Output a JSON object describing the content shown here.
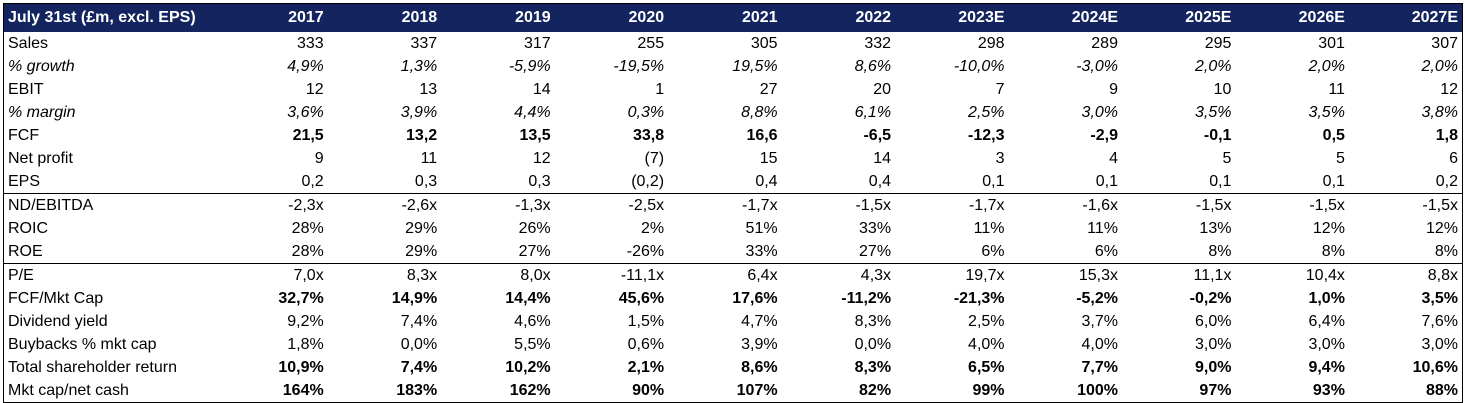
{
  "header": {
    "label": "July 31st (£m, excl. EPS)",
    "years": [
      "2017",
      "2018",
      "2019",
      "2020",
      "2021",
      "2022",
      "2023E",
      "2024E",
      "2025E",
      "2026E",
      "2027E"
    ]
  },
  "rows": [
    {
      "label": "Sales",
      "style": "",
      "values": [
        "333",
        "337",
        "317",
        "255",
        "305",
        "332",
        "298",
        "289",
        "295",
        "301",
        "307"
      ]
    },
    {
      "label": "% growth",
      "style": "italic",
      "values": [
        "4,9%",
        "1,3%",
        "-5,9%",
        "-19,5%",
        "19,5%",
        "8,6%",
        "-10,0%",
        "-3,0%",
        "2,0%",
        "2,0%",
        "2,0%"
      ]
    },
    {
      "label": "EBIT",
      "style": "",
      "values": [
        "12",
        "13",
        "14",
        "1",
        "27",
        "20",
        "7",
        "9",
        "10",
        "11",
        "12"
      ]
    },
    {
      "label": "% margin",
      "style": "italic",
      "values": [
        "3,6%",
        "3,9%",
        "4,4%",
        "0,3%",
        "8,8%",
        "6,1%",
        "2,5%",
        "3,0%",
        "3,5%",
        "3,5%",
        "3,8%"
      ]
    },
    {
      "label": "FCF",
      "style": "bold",
      "values": [
        "21,5",
        "13,2",
        "13,5",
        "33,8",
        "16,6",
        "-6,5",
        "-12,3",
        "-2,9",
        "-0,1",
        "0,5",
        "1,8"
      ]
    },
    {
      "label": "Net profit",
      "style": "",
      "values": [
        "9",
        "11",
        "12",
        "(7)",
        "15",
        "14",
        "3",
        "4",
        "5",
        "5",
        "6"
      ]
    },
    {
      "label": "EPS",
      "style": "",
      "values": [
        "0,2",
        "0,3",
        "0,3",
        "(0,2)",
        "0,4",
        "0,4",
        "0,1",
        "0,1",
        "0,1",
        "0,1",
        "0,2"
      ]
    },
    {
      "label": "ND/EBITDA",
      "style": "sep",
      "values": [
        "-2,3x",
        "-2,6x",
        "-1,3x",
        "-2,5x",
        "-1,7x",
        "-1,5x",
        "-1,7x",
        "-1,6x",
        "-1,5x",
        "-1,5x",
        "-1,5x"
      ]
    },
    {
      "label": "ROIC",
      "style": "",
      "values": [
        "28%",
        "29%",
        "26%",
        "2%",
        "51%",
        "33%",
        "11%",
        "11%",
        "13%",
        "12%",
        "12%"
      ]
    },
    {
      "label": "ROE",
      "style": "",
      "values": [
        "28%",
        "29%",
        "27%",
        "-26%",
        "33%",
        "27%",
        "6%",
        "6%",
        "8%",
        "8%",
        "8%"
      ]
    },
    {
      "label": "P/E",
      "style": "sep",
      "values": [
        "7,0x",
        "8,3x",
        "8,0x",
        "-11,1x",
        "6,4x",
        "4,3x",
        "19,7x",
        "15,3x",
        "11,1x",
        "10,4x",
        "8,8x"
      ]
    },
    {
      "label": "FCF/Mkt Cap",
      "style": "bold",
      "values": [
        "32,7%",
        "14,9%",
        "14,4%",
        "45,6%",
        "17,6%",
        "-11,2%",
        "-21,3%",
        "-5,2%",
        "-0,2%",
        "1,0%",
        "3,5%"
      ]
    },
    {
      "label": "Dividend yield",
      "style": "",
      "values": [
        "9,2%",
        "7,4%",
        "4,6%",
        "1,5%",
        "4,7%",
        "8,3%",
        "2,5%",
        "3,7%",
        "6,0%",
        "6,4%",
        "7,6%"
      ]
    },
    {
      "label": "Buybacks % mkt cap",
      "style": "",
      "values": [
        "1,8%",
        "0,0%",
        "5,5%",
        "0,6%",
        "3,9%",
        "0,0%",
        "4,0%",
        "4,0%",
        "3,0%",
        "3,0%",
        "3,0%"
      ]
    },
    {
      "label": "Total shareholder return",
      "style": "bold",
      "values": [
        "10,9%",
        "7,4%",
        "10,2%",
        "2,1%",
        "8,6%",
        "8,3%",
        "6,5%",
        "7,7%",
        "9,0%",
        "9,4%",
        "10,6%"
      ]
    },
    {
      "label": "Mkt cap/net cash",
      "style": "bold",
      "values": [
        "164%",
        "183%",
        "162%",
        "90%",
        "107%",
        "82%",
        "99%",
        "100%",
        "97%",
        "93%",
        "88%"
      ]
    }
  ]
}
